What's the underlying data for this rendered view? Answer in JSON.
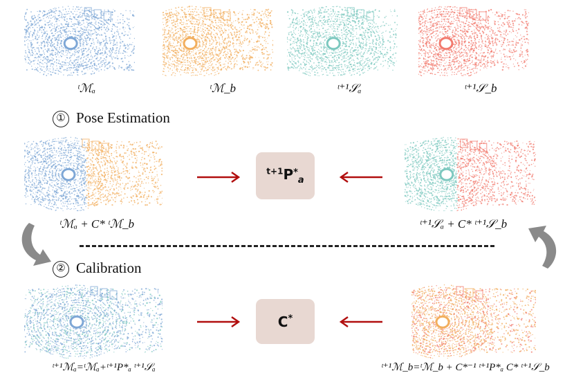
{
  "colors": {
    "blue": "#7ea7d6",
    "orange": "#f2ae5d",
    "teal": "#7cc8bf",
    "red": "#f27a6e",
    "box": "#e8d8d2",
    "arrow": "#b10e0e",
    "curve": "#8a8a8a"
  },
  "top_captions": [
    "ᵗℳₐ",
    "ᵗℳ_b",
    "ᵗ⁺¹𝒮ₐ",
    "ᵗ⁺¹𝒮_b"
  ],
  "step1": {
    "number": "①",
    "label": "Pose Estimation"
  },
  "step2": {
    "number": "②",
    "label": "Calibration"
  },
  "row2": {
    "left_caption": "ᵗℳₐ + C* ᵗℳ_b",
    "right_caption": "ᵗ⁺¹𝒮ₐ + C* ᵗ⁺¹𝒮_b",
    "box_label": "t+1P*a"
  },
  "row3": {
    "left_caption": "ᵗ⁺¹ℳₐ=ᵗℳₐ+ᵗ⁺¹P*ₐ ᵗ⁺¹𝒮ₐ",
    "right_caption": "ᵗ⁺¹ℳ_b=ᵗℳ_b + C*⁻¹ ᵗ⁺¹P*ₐ C* ᵗ⁺¹𝒮_b",
    "box_label": "C*"
  },
  "icons": [
    "right-arrow-icon",
    "left-arrow-icon",
    "curved-down-arrow-icon",
    "curved-up-arrow-icon"
  ]
}
